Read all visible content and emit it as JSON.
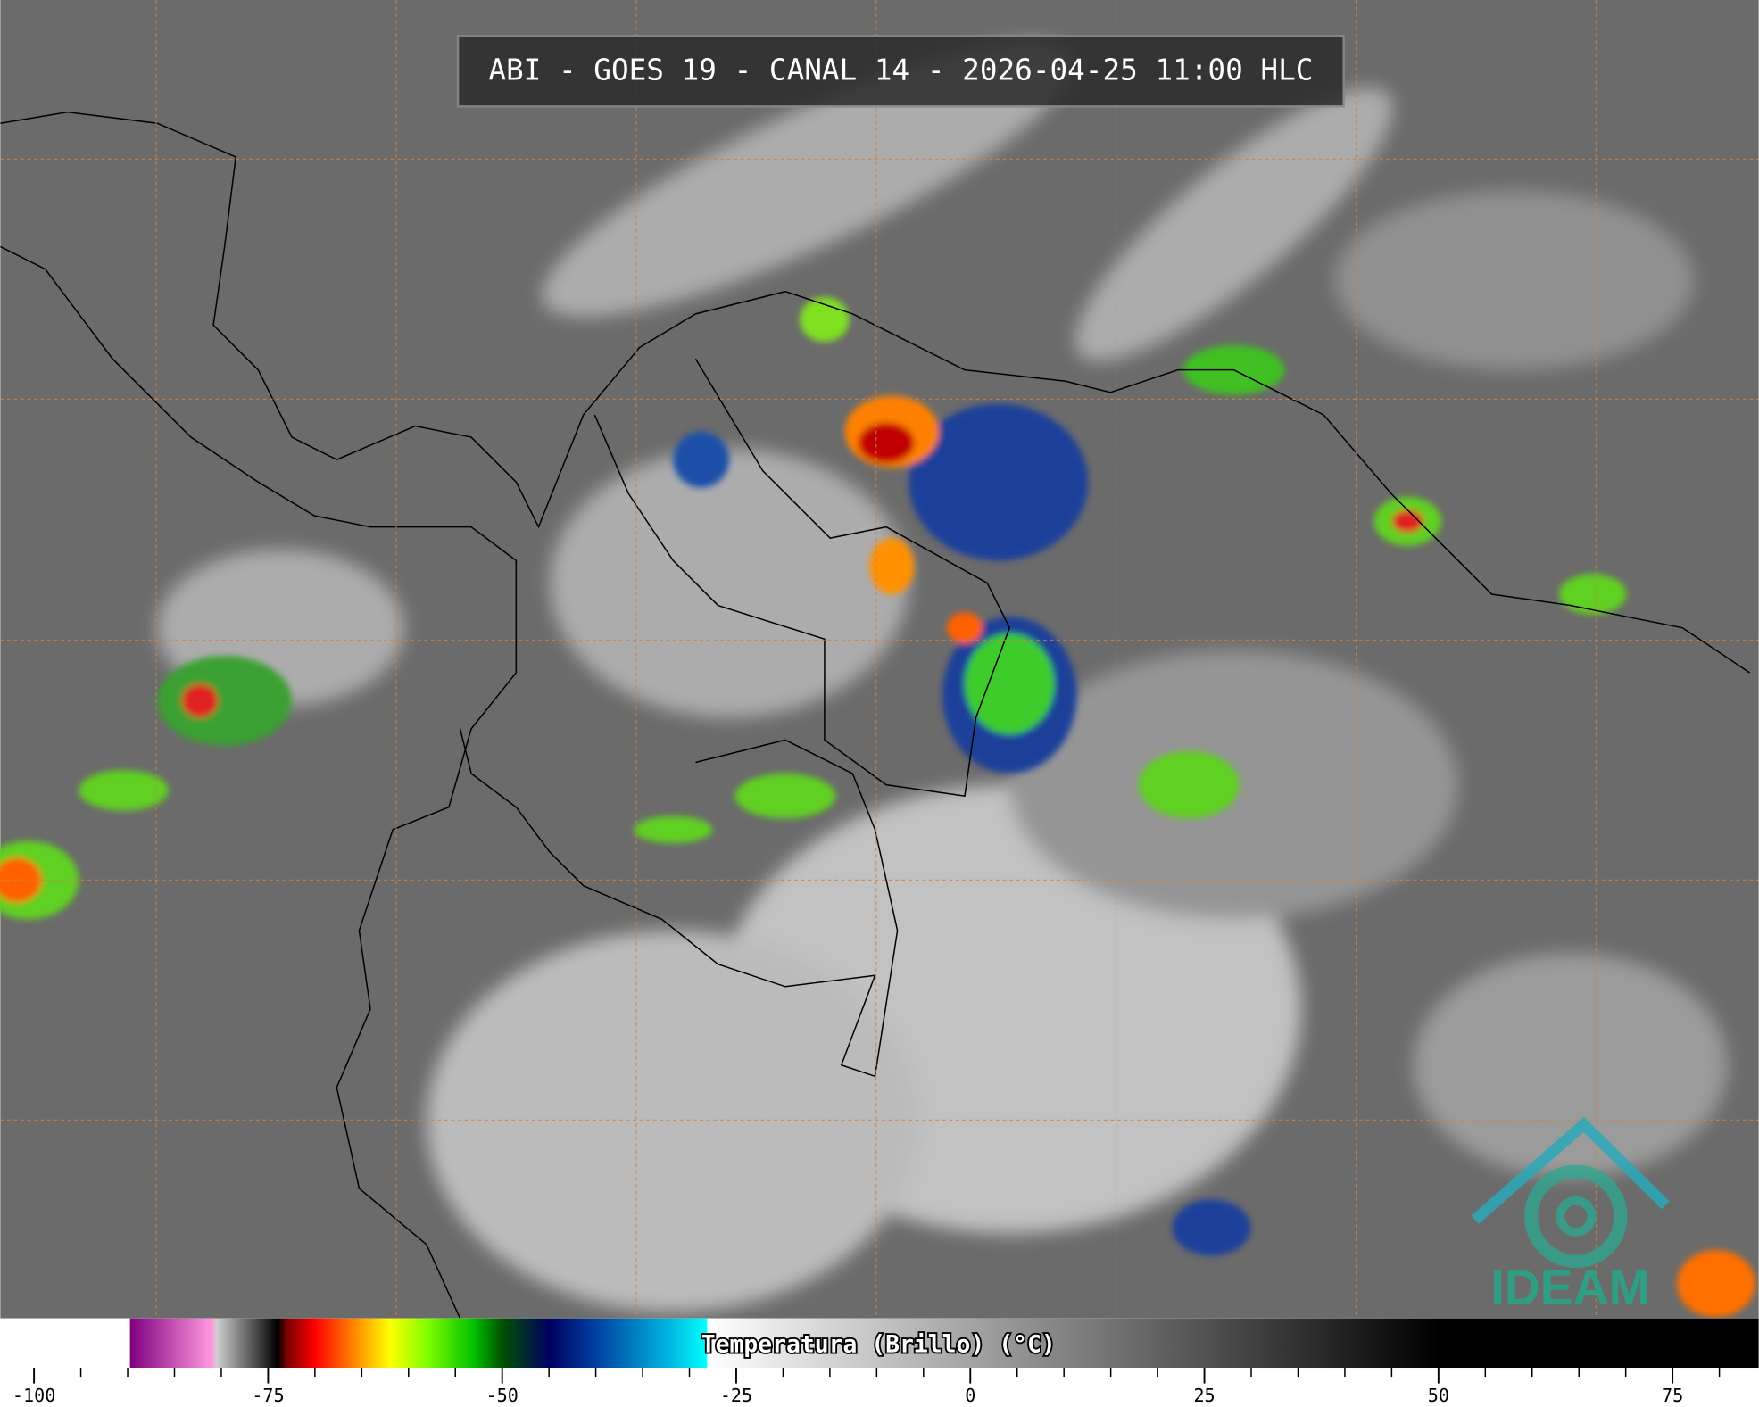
{
  "title": "ABI - GOES 19 - CANAL 14 - 2026-04-25 11:00 HLC",
  "logo": "IDEAM",
  "colorbar": {
    "label": "Temperatura (Brillo) (°C)",
    "lim": [
      -103.6,
      84.2
    ],
    "ticks": [
      -100,
      -75,
      -50,
      -25,
      0,
      25,
      50,
      75
    ],
    "minor_ticks": [
      -95,
      -90,
      -85,
      -80,
      -70,
      -65,
      -60,
      -55,
      -45,
      -40,
      -35,
      -30,
      -20,
      -15,
      -10,
      -5,
      5,
      10,
      15,
      20,
      30,
      35,
      40,
      45,
      55,
      60,
      65,
      70,
      80
    ],
    "stops": [
      {
        "value": -103.6,
        "color": "#ffffff"
      },
      {
        "value": -89.8,
        "color": "#ffffff"
      },
      {
        "value": -89.7,
        "color": "#800080"
      },
      {
        "value": -81,
        "color": "#ff99dd"
      },
      {
        "value": -80.5,
        "color": "#d0d0d0"
      },
      {
        "value": -75,
        "color": "#202020"
      },
      {
        "value": -74,
        "color": "#000000"
      },
      {
        "value": -73,
        "color": "#7a0000"
      },
      {
        "value": -70,
        "color": "#ff0000"
      },
      {
        "value": -66,
        "color": "#ff8000"
      },
      {
        "value": -62,
        "color": "#ffff00"
      },
      {
        "value": -58,
        "color": "#80ff00"
      },
      {
        "value": -53,
        "color": "#00c000"
      },
      {
        "value": -50,
        "color": "#005000"
      },
      {
        "value": -45,
        "color": "#000060"
      },
      {
        "value": -40,
        "color": "#0040a0"
      },
      {
        "value": -32,
        "color": "#00b8e0"
      },
      {
        "value": -28.2,
        "color": "#00ffff"
      },
      {
        "value": -28,
        "color": "#ffffff"
      },
      {
        "value": 50,
        "color": "#000000"
      },
      {
        "value": 84.2,
        "color": "#000000"
      }
    ]
  }
}
